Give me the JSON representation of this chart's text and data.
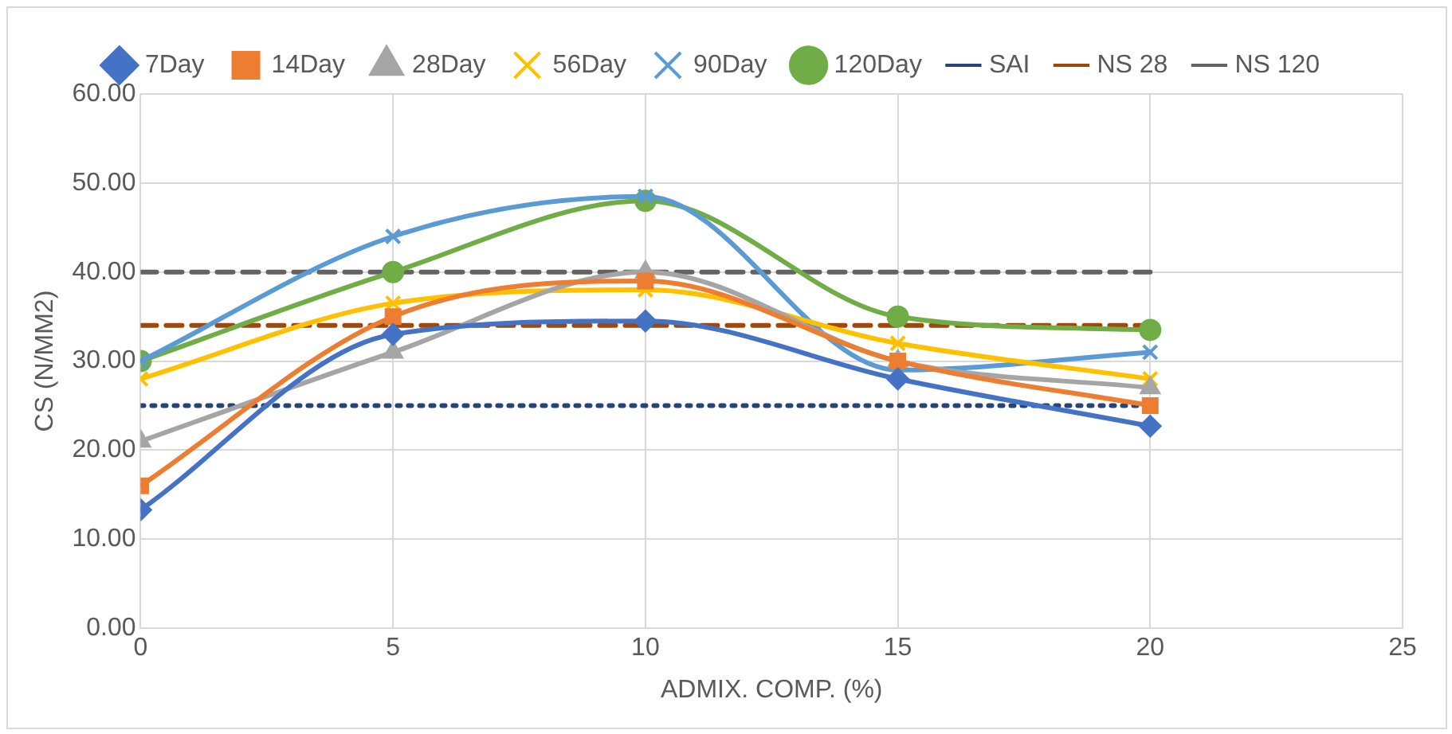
{
  "chart_data": {
    "type": "line",
    "xlabel": "ADMIX. COMP. (%)",
    "ylabel": "CS (N/MM2)",
    "x": [
      0,
      5,
      10,
      15,
      20
    ],
    "xlim": [
      0,
      25
    ],
    "xticks": [
      0,
      5,
      10,
      15,
      20,
      25
    ],
    "ylim": [
      0,
      60
    ],
    "yticks": [
      {
        "value": 0,
        "label": "0.00"
      },
      {
        "value": 10,
        "label": "10.00"
      },
      {
        "value": 20,
        "label": "20.00"
      },
      {
        "value": 30,
        "label": "30.00"
      },
      {
        "value": 40,
        "label": "40.00"
      },
      {
        "value": 50,
        "label": "50.00"
      },
      {
        "value": 60,
        "label": "60.00"
      }
    ],
    "grid": true,
    "legend": "top",
    "series": [
      {
        "name": "7Day",
        "color": "#4472c4",
        "marker": "diamond",
        "line_style": "solid",
        "values": [
          13.3,
          33,
          34.5,
          28,
          22.7
        ]
      },
      {
        "name": "14Day",
        "color": "#ed7d31",
        "marker": "square",
        "line_style": "solid",
        "values": [
          16,
          35,
          39,
          30,
          25
        ]
      },
      {
        "name": "28Day",
        "color": "#a5a5a5",
        "marker": "triangle",
        "line_style": "solid",
        "values": [
          21,
          31,
          40,
          30,
          27
        ]
      },
      {
        "name": "56Day",
        "color": "#ffc000",
        "marker": "cross",
        "line_style": "solid",
        "values": [
          28,
          36.5,
          38,
          32,
          28
        ]
      },
      {
        "name": "90Day",
        "color": "#5b9bd5",
        "marker": "cross",
        "line_style": "solid",
        "values": [
          30,
          44,
          48.5,
          29,
          31
        ]
      },
      {
        "name": "120Day",
        "color": "#70ad47",
        "marker": "circle",
        "line_style": "solid",
        "values": [
          30,
          40,
          48,
          35,
          33.5
        ]
      },
      {
        "name": "SAI",
        "color": "#264478",
        "marker": "none",
        "line_style": "dotted",
        "values": [
          25,
          25,
          25,
          25,
          25
        ]
      },
      {
        "name": "NS 28",
        "color": "#9e480e",
        "marker": "none",
        "line_style": "dashed",
        "values": [
          34,
          34,
          34,
          34,
          34
        ]
      },
      {
        "name": "NS 120",
        "color": "#636363",
        "marker": "none",
        "line_style": "dashed",
        "values": [
          40,
          40,
          40,
          40,
          40
        ]
      }
    ]
  }
}
